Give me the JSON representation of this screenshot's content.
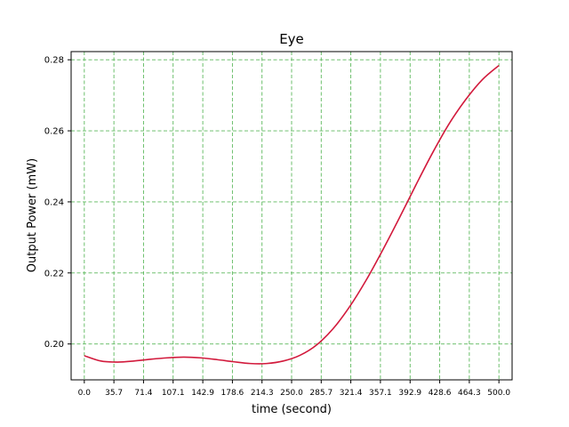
{
  "chart_data": {
    "type": "line",
    "title": "Eye",
    "xlabel": "time (second)",
    "ylabel": "Output Power (mW)",
    "xlim": [
      -15.9,
      515.9
    ],
    "ylim": [
      0.1899,
      0.2823
    ],
    "xticks": [
      0.0,
      35.7,
      71.4,
      107.1,
      142.9,
      178.6,
      214.3,
      250.0,
      285.7,
      321.4,
      357.1,
      392.9,
      428.6,
      464.3,
      500.0
    ],
    "xtick_labels": [
      "0.0",
      "35.7",
      "71.4",
      "107.1",
      "142.9",
      "178.6",
      "214.3",
      "250.0",
      "285.7",
      "321.4",
      "357.1",
      "392.9",
      "428.6",
      "464.3",
      "500.0"
    ],
    "yticks": [
      0.2,
      0.22,
      0.24,
      0.26,
      0.28
    ],
    "ytick_labels": [
      "0.20",
      "0.22",
      "0.24",
      "0.26",
      "0.28"
    ],
    "grid": true,
    "grid_color": "#5cb85c",
    "line_color": "#d21a3c",
    "series": [
      {
        "x": [
          0,
          20,
          40,
          60,
          80,
          100,
          120,
          140,
          160,
          180,
          200,
          220,
          240,
          260,
          280,
          300,
          320,
          340,
          360,
          380,
          400,
          420,
          440,
          460,
          480,
          500
        ],
        "values": [
          0.1967,
          0.1952,
          0.1949,
          0.1952,
          0.1957,
          0.1961,
          0.1963,
          0.1961,
          0.1956,
          0.195,
          0.1945,
          0.1945,
          0.1952,
          0.1968,
          0.1997,
          0.2043,
          0.2105,
          0.218,
          0.2265,
          0.2355,
          0.2448,
          0.2538,
          0.262,
          0.2688,
          0.2744,
          0.2784
        ]
      }
    ]
  }
}
